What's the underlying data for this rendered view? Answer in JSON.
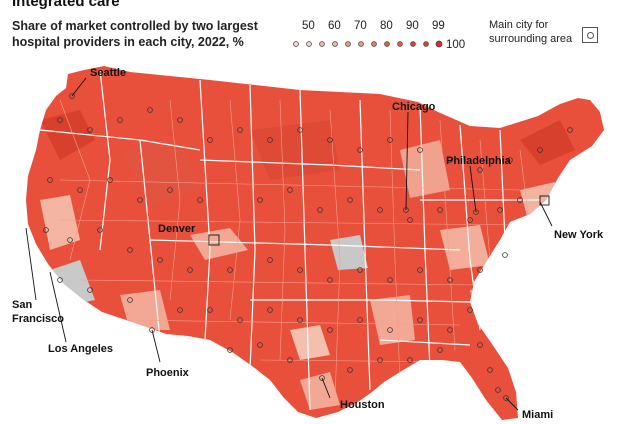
{
  "header": {
    "title_partial": "Integrated care",
    "subtitle_line1": "Share of market controlled by two largest",
    "subtitle_line2": "hospital providers in each city, 2022, %"
  },
  "legend": {
    "scale_labels": [
      "50",
      "60",
      "70",
      "80",
      "90",
      "99"
    ],
    "max_label": "100",
    "main_city_label_line1": "Main city for",
    "main_city_label_line2": "surrounding area",
    "colors": [
      "#f7d9cf",
      "#f4b9a6",
      "#ef9a82",
      "#ea7a5e",
      "#e45c42",
      "#de4431",
      "#d82f23"
    ]
  },
  "map": {
    "fill_color": "#e8503c",
    "light_fill_color": "#f3a896",
    "grey_fill_color": "#c8c8c8",
    "border_color": "#ffffff",
    "cities": [
      {
        "name": "Seattle"
      },
      {
        "name": "Chicago"
      },
      {
        "name": "Philadelphia"
      },
      {
        "name": "New York"
      },
      {
        "name": "Denver"
      },
      {
        "name": "San Francisco"
      },
      {
        "name": "Los Angeles"
      },
      {
        "name": "Phoenix"
      },
      {
        "name": "Houston"
      },
      {
        "name": "Miami"
      }
    ]
  }
}
